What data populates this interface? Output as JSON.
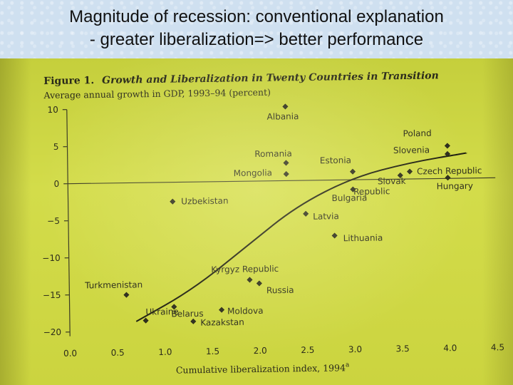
{
  "slide": {
    "title_line1": "Magnitude of recession: conventional explanation",
    "title_line2": "- greater liberalization=> better performance"
  },
  "chart_data": {
    "type": "scatter",
    "figure_label": "Figure 1.",
    "title": "Growth and Liberalization in Twenty Countries in Transition",
    "ylabel": "Average annual growth in GDP, 1993–94 (percent)",
    "xlabel": "Cumulative liberalization index, 1994",
    "xlabel_superscript": "a",
    "xlim": [
      0.0,
      4.5
    ],
    "ylim": [
      -20,
      10
    ],
    "x_ticks": [
      "0.0",
      "0.5",
      "1.0",
      "1.5",
      "2.0",
      "2.5",
      "3.0",
      "3.5",
      "4.0",
      "4.5"
    ],
    "y_ticks": [
      "10",
      "5",
      "0",
      "−5",
      "−10",
      "−15",
      "−20"
    ],
    "grid": false,
    "trend_line": true,
    "points": [
      {
        "name": "Albania",
        "x": 2.3,
        "y": 10.0
      },
      {
        "name": "Romania",
        "x": 2.3,
        "y": 2.4
      },
      {
        "name": "Mongolia",
        "x": 2.3,
        "y": 0.9
      },
      {
        "name": "Estonia",
        "x": 3.0,
        "y": 1.1
      },
      {
        "name": "Poland",
        "x": 4.0,
        "y": 4.4
      },
      {
        "name": "Slovenia",
        "x": 4.0,
        "y": 3.3
      },
      {
        "name": "Czech Republic",
        "x": 3.6,
        "y": 1.0
      },
      {
        "name": "Slovak Republic",
        "x": 3.5,
        "y": 0.5
      },
      {
        "name": "Hungary",
        "x": 4.0,
        "y": 0.1
      },
      {
        "name": "Bulgaria",
        "x": 3.0,
        "y": -1.3
      },
      {
        "name": "Uzbekistan",
        "x": 1.1,
        "y": -2.6
      },
      {
        "name": "Latvia",
        "x": 2.5,
        "y": -4.5
      },
      {
        "name": "Lithuania",
        "x": 2.8,
        "y": -7.5
      },
      {
        "name": "Kyrgyz Republic",
        "x": 1.9,
        "y": -13.3
      },
      {
        "name": "Russia",
        "x": 2.0,
        "y": -13.8
      },
      {
        "name": "Turkmenistan",
        "x": 0.6,
        "y": -15.1
      },
      {
        "name": "Belarus",
        "x": 1.1,
        "y": -16.8
      },
      {
        "name": "Moldova",
        "x": 1.6,
        "y": -17.3
      },
      {
        "name": "Ukraine",
        "x": 0.8,
        "y": -18.6
      },
      {
        "name": "Kazakstan",
        "x": 1.3,
        "y": -18.8
      }
    ]
  }
}
